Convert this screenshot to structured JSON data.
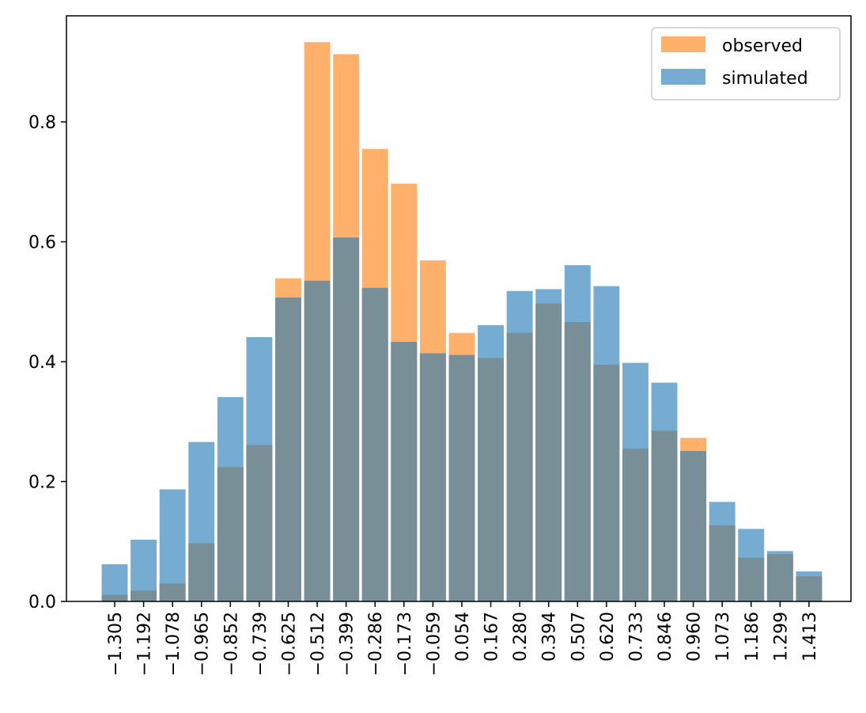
{
  "chart_data": {
    "type": "bar",
    "title": "",
    "xlabel": "",
    "ylabel": "",
    "ylim": [
      0,
      0.977
    ],
    "yticks": [
      0.0,
      0.2,
      0.4,
      0.6,
      0.8
    ],
    "ytick_labels": [
      "0.0",
      "0.2",
      "0.4",
      "0.6",
      "0.8"
    ],
    "grid": false,
    "legend_position": "top-right",
    "categories": [
      "−1.305",
      "−1.192",
      "−1.078",
      "−0.965",
      "−0.852",
      "−0.739",
      "−0.625",
      "−0.512",
      "−0.399",
      "−0.286",
      "−0.173",
      "−0.059",
      "0.054",
      "0.167",
      "0.280",
      "0.394",
      "0.507",
      "0.620",
      "0.733",
      "0.846",
      "0.960",
      "1.073",
      "1.186",
      "1.299",
      "1.413"
    ],
    "series": [
      {
        "name": "observed",
        "color": "#ffb06b",
        "values": [
          0.011,
          0.018,
          0.03,
          0.097,
          0.224,
          0.261,
          0.539,
          0.933,
          0.913,
          0.755,
          0.697,
          0.569,
          0.448,
          0.406,
          0.448,
          0.497,
          0.466,
          0.395,
          0.255,
          0.285,
          0.273,
          0.127,
          0.073,
          0.079,
          0.042
        ]
      },
      {
        "name": "simulated",
        "color": "#76abd2",
        "values": [
          0.062,
          0.103,
          0.187,
          0.266,
          0.341,
          0.441,
          0.507,
          0.535,
          0.607,
          0.523,
          0.433,
          0.414,
          0.411,
          0.461,
          0.518,
          0.521,
          0.561,
          0.526,
          0.398,
          0.365,
          0.251,
          0.166,
          0.121,
          0.084,
          0.05
        ]
      }
    ],
    "overlap_color": "#788f98"
  }
}
